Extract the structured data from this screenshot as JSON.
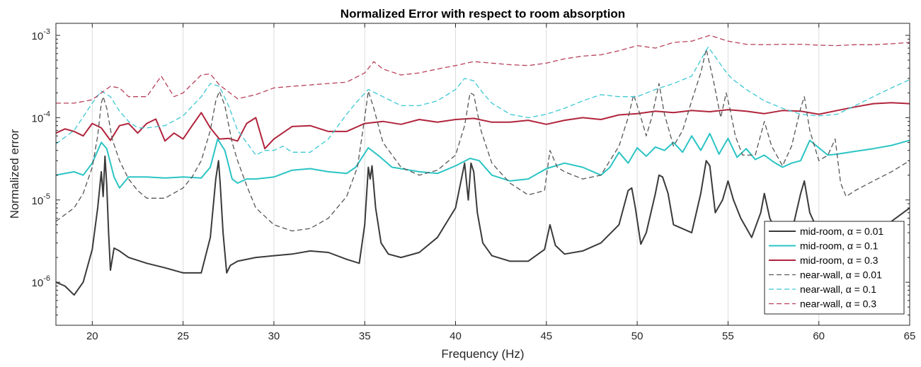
{
  "chart_data": {
    "type": "line",
    "title": "Normalized Error with respect to room absorption",
    "xlabel": "Frequency (Hz)",
    "ylabel": "Normalized error",
    "xlim": [
      18,
      65
    ],
    "ylim": [
      3e-07,
      0.0014
    ],
    "y_scale": "log",
    "grid": "vertical lines at x ticks",
    "legend_position": "bottom-right",
    "x_ticks": [
      20,
      25,
      30,
      35,
      40,
      45,
      50,
      55,
      60,
      65
    ],
    "x_tick_labels": [
      "20",
      "25",
      "30",
      "35",
      "40",
      "45",
      "50",
      "55",
      "60",
      "65"
    ],
    "y_ticks": [
      {
        "value": 1e-06,
        "base": "10",
        "exp": "-6"
      },
      {
        "value": 1e-05,
        "base": "10",
        "exp": "-5"
      },
      {
        "value": 0.0001,
        "base": "10",
        "exp": "-4"
      },
      {
        "value": 0.001,
        "base": "10",
        "exp": "-3"
      }
    ],
    "series": [
      {
        "name": "mid-room, α = 0.01",
        "color": "#3a3a3a",
        "style": "solid",
        "width": 2,
        "x": [
          18,
          18.5,
          19,
          19.5,
          20,
          20.3,
          20.5,
          20.6,
          20.7,
          20.8,
          20.9,
          21.0,
          21.2,
          21.5,
          22,
          23,
          24,
          25,
          26,
          26.5,
          26.8,
          26.95,
          27.05,
          27.2,
          27.4,
          27.6,
          28,
          29,
          30,
          31,
          32,
          33,
          34,
          34.7,
          35.0,
          35.2,
          35.3,
          35.4,
          35.6,
          35.9,
          36.3,
          37,
          38,
          39,
          40,
          40.5,
          40.7,
          40.85,
          41.0,
          41.2,
          41.5,
          42,
          43,
          44,
          44.9,
          45.2,
          45.5,
          46,
          47,
          48,
          49,
          49.5,
          49.7,
          49.9,
          50.2,
          50.5,
          51,
          51.2,
          51.4,
          51.7,
          52,
          53,
          53.5,
          53.8,
          54.0,
          54.3,
          54.7,
          55,
          55.3,
          55.7,
          56.3,
          56.8,
          57.0,
          57.3,
          57.8,
          58.5,
          59.0,
          59.2,
          59.5,
          60,
          60.8,
          61.5,
          62,
          63,
          64,
          65
        ],
        "y": [
          1e-06,
          9e-07,
          7e-07,
          1e-06,
          2.5e-06,
          8e-06,
          2.2e-05,
          1.1e-05,
          3.4e-05,
          1.5e-05,
          4e-06,
          1.4e-06,
          2.6e-06,
          2.4e-06,
          2e-06,
          1.7e-06,
          1.5e-06,
          1.3e-06,
          1.3e-06,
          3.5e-06,
          1.8e-05,
          3e-05,
          1.5e-05,
          4e-06,
          1.3e-06,
          1.6e-06,
          1.8e-06,
          2e-06,
          2.1e-06,
          2.2e-06,
          2.4e-06,
          2.3e-06,
          1.9e-06,
          1.7e-06,
          5e-06,
          2.5e-05,
          1.8e-05,
          2.6e-05,
          8e-06,
          3e-06,
          2.2e-06,
          2e-06,
          2.3e-06,
          3.5e-06,
          8e-06,
          2.8e-05,
          1e-05,
          2.8e-05,
          2.2e-05,
          7e-06,
          3e-06,
          2.1e-06,
          1.8e-06,
          1.8e-06,
          2.5e-06,
          5e-06,
          2.8e-06,
          2.2e-06,
          2.4e-06,
          3e-06,
          5e-06,
          1.3e-05,
          1.4e-05,
          8e-06,
          2.9e-06,
          4e-06,
          1.2e-05,
          2e-05,
          1.9e-05,
          1.2e-05,
          5e-06,
          4e-06,
          1.2e-05,
          3e-05,
          2.6e-05,
          7e-06,
          1e-05,
          1.7e-05,
          1e-05,
          6e-06,
          3.5e-06,
          7e-06,
          1.2e-05,
          6e-06,
          3.5e-06,
          4e-06,
          1.2e-05,
          1.7e-05,
          7e-06,
          4e-06,
          4.5e-06,
          3.8e-06,
          3.6e-06,
          4.2e-06,
          5.5e-06,
          8e-06
        ]
      },
      {
        "name": "mid-room, α = 0.1",
        "color": "#2bc4c4",
        "style": "solid",
        "width": 2,
        "x": [
          18,
          19,
          19.5,
          20,
          20.5,
          20.8,
          21.2,
          21.5,
          22,
          23,
          24,
          25,
          26,
          26.5,
          26.9,
          27.3,
          27.7,
          28,
          28.5,
          29,
          30,
          31,
          32,
          33,
          34,
          34.5,
          35.2,
          35.8,
          36.5,
          37,
          38,
          39,
          40,
          40.8,
          41.3,
          42,
          43,
          44,
          45,
          46,
          47,
          48,
          48.5,
          49,
          49.5,
          50,
          50.5,
          51,
          51.5,
          52,
          52.5,
          53,
          53.5,
          54,
          54.5,
          55,
          55.5,
          56,
          56.5,
          57,
          57.5,
          58,
          58.5,
          59,
          59.5,
          60,
          60.5,
          61,
          62,
          63,
          64,
          65
        ],
        "y": [
          2e-05,
          2.2e-05,
          2e-05,
          2.8e-05,
          5e-05,
          4.2e-05,
          1.9e-05,
          1.4e-05,
          1.9e-05,
          1.9e-05,
          1.85e-05,
          1.9e-05,
          1.85e-05,
          2.5e-05,
          5.5e-05,
          4e-05,
          1.8e-05,
          1.6e-05,
          1.8e-05,
          1.8e-05,
          1.9e-05,
          2.3e-05,
          2.4e-05,
          2.2e-05,
          2.1e-05,
          2.5e-05,
          4.3e-05,
          3.4e-05,
          2.5e-05,
          2.4e-05,
          2.2e-05,
          2.1e-05,
          2.6e-05,
          3.2e-05,
          3e-05,
          2e-05,
          1.7e-05,
          1.8e-05,
          2.4e-05,
          2.8e-05,
          2.5e-05,
          2e-05,
          2.5e-05,
          3.8e-05,
          2.8e-05,
          4.3e-05,
          3.4e-05,
          4.4e-05,
          4e-05,
          5e-05,
          3.8e-05,
          6e-05,
          4e-05,
          6.4e-05,
          3.6e-05,
          5.6e-05,
          3.3e-05,
          4.2e-05,
          3.1e-05,
          3.5e-05,
          2.9e-05,
          2.5e-05,
          2.8e-05,
          3e-05,
          5.3e-05,
          4.3e-05,
          3.5e-05,
          3.6e-05,
          3.9e-05,
          4.2e-05,
          4.6e-05,
          5.3e-05
        ]
      },
      {
        "name": "mid-room, α = 0.3",
        "color": "#b0243c",
        "style": "solid",
        "width": 2,
        "x": [
          18,
          18.5,
          19,
          19.5,
          20,
          20.5,
          21,
          21.5,
          22,
          22.5,
          23,
          23.5,
          24,
          24.5,
          25,
          25.5,
          26,
          26.5,
          27,
          27.5,
          28,
          28.5,
          29,
          29.5,
          30,
          31,
          32,
          33,
          34,
          35,
          36,
          37,
          38,
          39,
          40,
          41,
          42,
          43,
          44,
          45,
          46,
          47,
          48,
          49,
          50,
          51,
          52,
          53,
          54,
          55,
          56,
          57,
          58,
          59,
          60,
          61,
          62,
          63,
          64,
          65
        ],
        "y": [
          6.5e-05,
          7.3e-05,
          6.8e-05,
          6e-05,
          8.5e-05,
          7.5e-05,
          5.3e-05,
          8e-05,
          8.5e-05,
          6.5e-05,
          8.5e-05,
          9.6e-05,
          5.2e-05,
          6.5e-05,
          5.5e-05,
          8e-05,
          0.000115,
          7.5e-05,
          5.5e-05,
          5.6e-05,
          5.2e-05,
          8.5e-05,
          0.0001,
          4.2e-05,
          5.5e-05,
          7.8e-05,
          8e-05,
          6.8e-05,
          6.8e-05,
          8.5e-05,
          9e-05,
          8.3e-05,
          9.5e-05,
          8.8e-05,
          9.5e-05,
          9.8e-05,
          8.8e-05,
          8.8e-05,
          9.3e-05,
          8.3e-05,
          9.3e-05,
          0.0001,
          9.5e-05,
          0.000108,
          0.000112,
          0.00012,
          0.000115,
          0.000122,
          0.000118,
          0.000125,
          0.00012,
          0.000112,
          0.000122,
          0.00012,
          0.00011,
          0.000122,
          0.000135,
          0.000148,
          0.000152,
          0.000148
        ]
      },
      {
        "name": "near-wall, α = 0.01",
        "color": "#555555",
        "style": "dashed",
        "width": 1.3,
        "x": [
          18,
          19,
          19.5,
          20,
          20.3,
          20.5,
          20.6,
          20.8,
          21.1,
          21.5,
          22,
          22.5,
          23,
          24,
          25,
          25.5,
          26,
          26.5,
          26.8,
          27.0,
          27.3,
          27.7,
          28,
          28.5,
          29,
          30,
          31,
          32,
          33,
          34,
          34.6,
          35.0,
          35.2,
          35.5,
          36,
          37,
          38,
          39,
          40,
          40.5,
          40.8,
          41.0,
          41.4,
          42,
          43,
          44,
          44.9,
          45.2,
          45.6,
          46,
          47,
          48,
          49,
          49.5,
          49.8,
          50.1,
          50.5,
          50.8,
          51.2,
          51.5,
          52,
          52.5,
          53,
          53.5,
          53.8,
          54.2,
          54.6,
          54.9,
          55.1,
          55.4,
          55.8,
          56.5,
          57.0,
          57.4,
          58,
          58.5,
          59,
          59.2,
          59.5,
          60,
          60.5,
          60.9,
          61.2,
          61.5,
          62,
          63,
          64,
          65
        ],
        "y": [
          5.5e-06,
          8e-06,
          1.2e-05,
          2.5e-05,
          6e-05,
          0.00015,
          0.00018,
          0.00013,
          5.5e-05,
          3e-05,
          1.8e-05,
          1.3e-05,
          1.05e-05,
          1.05e-05,
          1.4e-05,
          1.9e-05,
          3e-05,
          7e-05,
          0.00016,
          0.00021,
          0.00014,
          5e-05,
          3e-05,
          1.5e-05,
          8e-06,
          5e-06,
          4.2e-06,
          4.5e-06,
          6e-06,
          1.1e-05,
          2.5e-05,
          0.0001,
          0.00021,
          0.00013,
          5e-05,
          2.5e-05,
          2e-05,
          2.3e-05,
          3.5e-05,
          8e-05,
          0.0002,
          0.00019,
          7e-05,
          2.8e-05,
          1.6e-05,
          1.15e-05,
          1.3e-05,
          4e-05,
          2.5e-05,
          2.2e-05,
          1.8e-05,
          2e-05,
          4.5e-05,
          0.0001,
          0.00019,
          0.00012,
          6e-05,
          0.0001,
          0.00026,
          0.00011,
          4.5e-05,
          7e-05,
          0.00016,
          0.00035,
          0.00068,
          0.00028,
          0.0001,
          0.0002,
          0.00013,
          6e-05,
          3.5e-05,
          3.5e-05,
          9e-05,
          4.5e-05,
          2.6e-05,
          4.5e-05,
          0.00013,
          0.00018,
          7e-05,
          3e-05,
          3.5e-05,
          5.5e-05,
          1.6e-05,
          1.1e-05,
          1.3e-05,
          1.7e-05,
          2.2e-05,
          3e-05
        ]
      },
      {
        "name": "near-wall, α = 0.1",
        "color": "#3cc8d2",
        "style": "dashed",
        "width": 1.3,
        "x": [
          18,
          19,
          20,
          20.5,
          21,
          21.5,
          22,
          22.5,
          23,
          24,
          25,
          26,
          26.5,
          27,
          27.5,
          28,
          28.5,
          29,
          29.5,
          30,
          30.5,
          31,
          32,
          33,
          34,
          34.5,
          35.2,
          36,
          37,
          38,
          39,
          40,
          40.5,
          41,
          41.5,
          42,
          43,
          44,
          45,
          46,
          47,
          48,
          49,
          50,
          51,
          52,
          53,
          53.5,
          53.9,
          54.3,
          54.8,
          55.2,
          56,
          57,
          58,
          59,
          60,
          61,
          62,
          63,
          64,
          65
        ],
        "y": [
          4.8e-05,
          7e-05,
          0.00015,
          0.00021,
          0.00018,
          0.00012,
          9e-05,
          7.5e-05,
          7.5e-05,
          8e-05,
          0.000105,
          0.00018,
          0.00026,
          0.00024,
          0.00014,
          7e-05,
          5e-05,
          3.5e-05,
          4e-05,
          4e-05,
          4.5e-05,
          3.8e-05,
          3.8e-05,
          5.5e-05,
          0.00011,
          0.00015,
          0.00022,
          0.00018,
          0.00014,
          0.00014,
          0.00016,
          0.00022,
          0.0003,
          0.00028,
          0.0002,
          0.00015,
          0.00011,
          0.0001,
          0.00011,
          0.00013,
          0.00016,
          0.00019,
          0.00018,
          0.00018,
          0.00022,
          0.00026,
          0.00032,
          0.0005,
          0.00072,
          0.00055,
          0.00038,
          0.0003,
          0.00022,
          0.00016,
          0.00013,
          0.00011,
          0.000105,
          0.00011,
          0.00014,
          0.00018,
          0.00023,
          0.00029
        ]
      },
      {
        "name": "near-wall, α = 0.3",
        "color": "#b8405a",
        "style": "dashed",
        "width": 1.3,
        "x": [
          18,
          19,
          20,
          20.5,
          21,
          21.5,
          22,
          23,
          23.8,
          24.5,
          25,
          26,
          26.5,
          27,
          28,
          29,
          30,
          31,
          32,
          33,
          34,
          35,
          35.5,
          36,
          37,
          38,
          39,
          40,
          41,
          42,
          43,
          44,
          45,
          46,
          47,
          48,
          49,
          50,
          51,
          52,
          53,
          54,
          55,
          56,
          57,
          58,
          59,
          60,
          61,
          62,
          63,
          64,
          65
        ],
        "y": [
          0.00015,
          0.00015,
          0.000165,
          0.0002,
          0.00024,
          0.00023,
          0.00018,
          0.00018,
          0.00032,
          0.00018,
          0.0002,
          0.00033,
          0.00034,
          0.00025,
          0.00017,
          0.00019,
          0.00023,
          0.00024,
          0.00025,
          0.00026,
          0.00027,
          0.00035,
          0.00048,
          0.00039,
          0.00033,
          0.00035,
          0.00039,
          0.00043,
          0.00048,
          0.00046,
          0.00044,
          0.00043,
          0.00046,
          0.00052,
          0.00056,
          0.00058,
          0.00065,
          0.00075,
          0.0007,
          0.00082,
          0.00085,
          0.001,
          0.00085,
          0.00078,
          0.00077,
          0.00078,
          0.00078,
          0.00076,
          0.00075,
          0.00077,
          0.00077,
          0.00079,
          0.00082
        ]
      }
    ]
  }
}
